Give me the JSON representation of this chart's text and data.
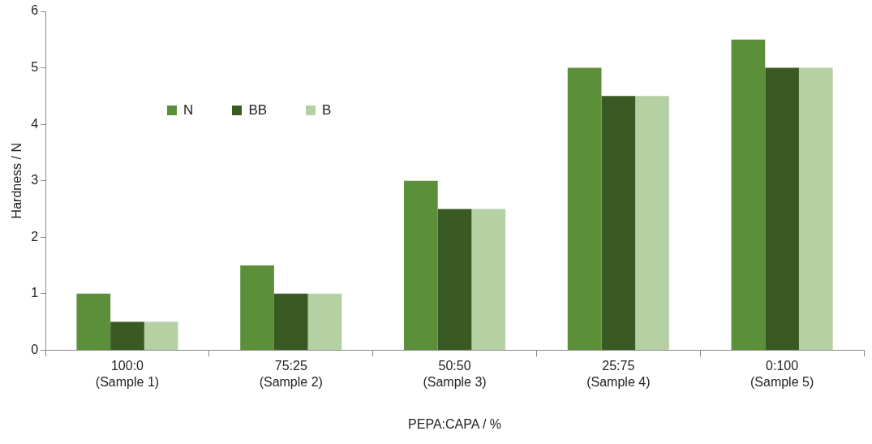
{
  "chart_data": {
    "type": "bar",
    "xlabel": "PEPA:CAPA / %",
    "ylabel": "Hardness / N",
    "categories": [
      "100:0\n(Sample 1)",
      "75:25\n(Sample 2)",
      "50:50\n(Sample 3)",
      "25:75\n(Sample 4)",
      "0:100\n(Sample 5)"
    ],
    "series": [
      {
        "name": "N",
        "color": "#5b8f3a",
        "values": [
          1,
          1.5,
          3,
          5,
          5.5
        ]
      },
      {
        "name": "BB",
        "color": "#3a5a24",
        "values": [
          0.5,
          1,
          2.5,
          4.5,
          5
        ]
      },
      {
        "name": "B",
        "color": "#b5d0a3",
        "values": [
          0.5,
          1,
          2.5,
          4.5,
          5
        ]
      }
    ],
    "ylim": [
      0,
      6
    ],
    "yticks": [
      0,
      1,
      2,
      3,
      4,
      5,
      6
    ],
    "grid": false,
    "legend": "top left"
  }
}
